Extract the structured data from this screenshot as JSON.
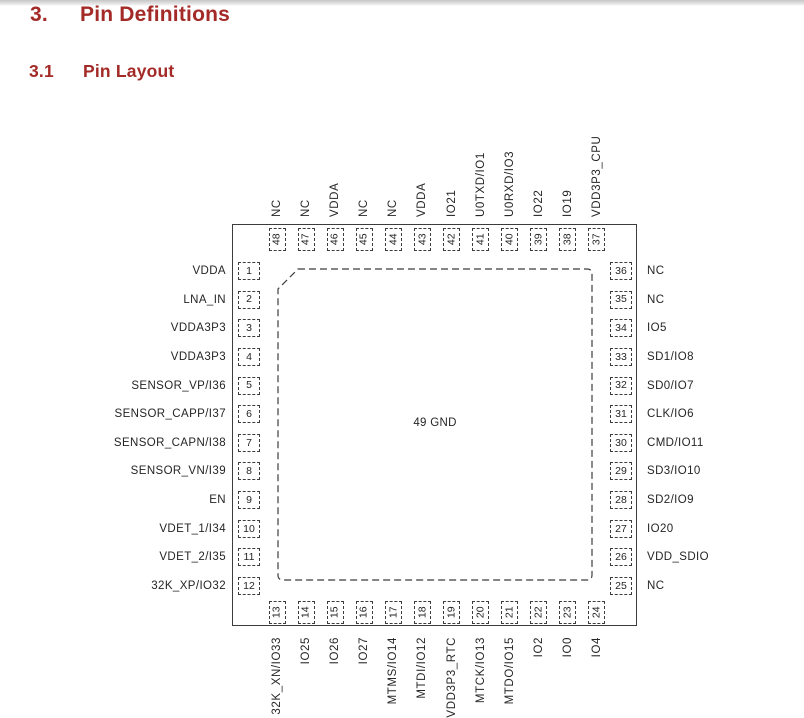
{
  "header": {
    "section_number": "3.",
    "section_title": "Pin Definitions",
    "subsection_number": "3.1",
    "subsection_title": "Pin Layout",
    "heading_color": "#A32A26"
  },
  "diagram": {
    "center_label": "49 GND",
    "line_color": "#3C3C3C",
    "pins": {
      "top": [
        {
          "num": "48",
          "label": "NC"
        },
        {
          "num": "47",
          "label": "NC"
        },
        {
          "num": "46",
          "label": "VDDA"
        },
        {
          "num": "45",
          "label": "NC"
        },
        {
          "num": "44",
          "label": "NC"
        },
        {
          "num": "43",
          "label": "VDDA"
        },
        {
          "num": "42",
          "label": "IO21"
        },
        {
          "num": "41",
          "label": "U0TXD/IO1"
        },
        {
          "num": "40",
          "label": "U0RXD/IO3"
        },
        {
          "num": "39",
          "label": "IO22"
        },
        {
          "num": "38",
          "label": "IO19"
        },
        {
          "num": "37",
          "label": "VDD3P3_CPU"
        }
      ],
      "left": [
        {
          "num": "1",
          "label": "VDDA"
        },
        {
          "num": "2",
          "label": "LNA_IN"
        },
        {
          "num": "3",
          "label": "VDDA3P3"
        },
        {
          "num": "4",
          "label": "VDDA3P3"
        },
        {
          "num": "5",
          "label": "SENSOR_VP/I36"
        },
        {
          "num": "6",
          "label": "SENSOR_CAPP/I37"
        },
        {
          "num": "7",
          "label": "SENSOR_CAPN/I38"
        },
        {
          "num": "8",
          "label": "SENSOR_VN/I39"
        },
        {
          "num": "9",
          "label": "EN"
        },
        {
          "num": "10",
          "label": "VDET_1/I34"
        },
        {
          "num": "11",
          "label": "VDET_2/I35"
        },
        {
          "num": "12",
          "label": "32K_XP/IO32"
        }
      ],
      "right": [
        {
          "num": "36",
          "label": "NC"
        },
        {
          "num": "35",
          "label": "NC"
        },
        {
          "num": "34",
          "label": "IO5"
        },
        {
          "num": "33",
          "label": "SD1/IO8"
        },
        {
          "num": "32",
          "label": "SD0/IO7"
        },
        {
          "num": "31",
          "label": "CLK/IO6"
        },
        {
          "num": "30",
          "label": "CMD/IO11"
        },
        {
          "num": "29",
          "label": "SD3/IO10"
        },
        {
          "num": "28",
          "label": "SD2/IO9"
        },
        {
          "num": "27",
          "label": "IO20"
        },
        {
          "num": "26",
          "label": "VDD_SDIO"
        },
        {
          "num": "25",
          "label": "NC"
        }
      ],
      "bottom": [
        {
          "num": "13",
          "label": "32K_XN/IO33"
        },
        {
          "num": "14",
          "label": "IO25"
        },
        {
          "num": "15",
          "label": "IO26"
        },
        {
          "num": "16",
          "label": "IO27"
        },
        {
          "num": "17",
          "label": "MTMS/IO14"
        },
        {
          "num": "18",
          "label": "MTDI/IO12"
        },
        {
          "num": "19",
          "label": "VDD3P3_RTC"
        },
        {
          "num": "20",
          "label": "MTCK/IO13"
        },
        {
          "num": "21",
          "label": "MTDO/IO15"
        },
        {
          "num": "22",
          "label": "IO2"
        },
        {
          "num": "23",
          "label": "IO0"
        },
        {
          "num": "24",
          "label": "IO4"
        }
      ]
    }
  }
}
